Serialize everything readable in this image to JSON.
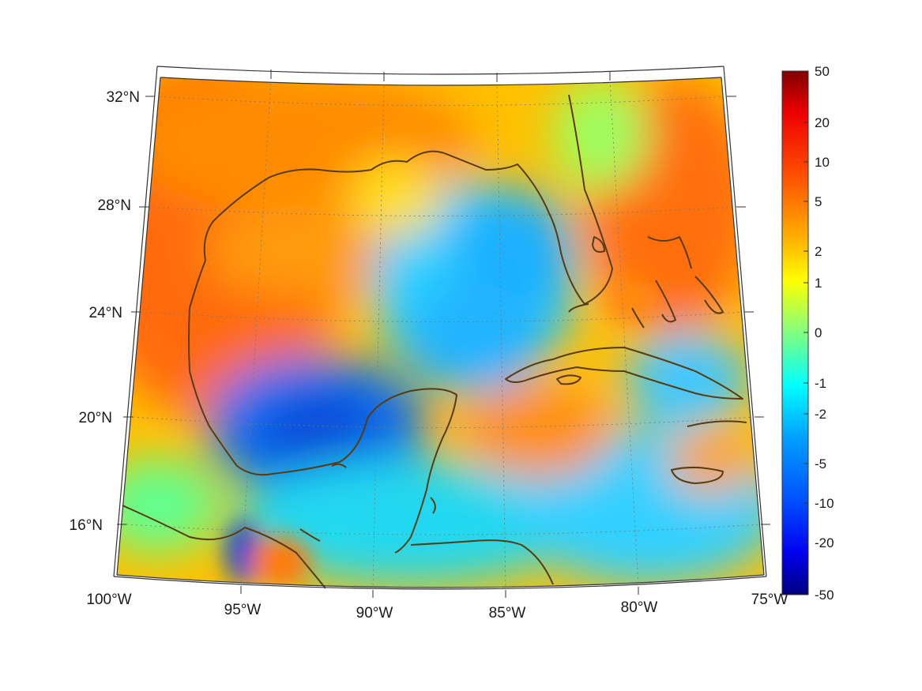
{
  "map": {
    "lon_labels": [
      "100°W",
      "95°W",
      "90°W",
      "85°W",
      "80°W",
      "75°W"
    ],
    "lat_labels": [
      "16°N",
      "20°N",
      "24°N",
      "28°N",
      "32°N"
    ],
    "coastline_color": "#5a3a10",
    "projection": "conic",
    "extent": {
      "lon": [
        -100,
        -75
      ],
      "lat": [
        14,
        33
      ]
    }
  },
  "colorbar": {
    "tick_labels": [
      "50",
      "20",
      "10",
      "5",
      "2",
      "1",
      "0",
      "-1",
      "-2",
      "-5",
      "-10",
      "-20",
      "-50"
    ],
    "colormap": "jet",
    "scale": "symmetric-log"
  },
  "field_colors": {
    "high": "#ff6a00",
    "mid": "#ffd400",
    "zero": "#7cf07c",
    "low": "#1aa0ff",
    "min": "#1040d8"
  }
}
